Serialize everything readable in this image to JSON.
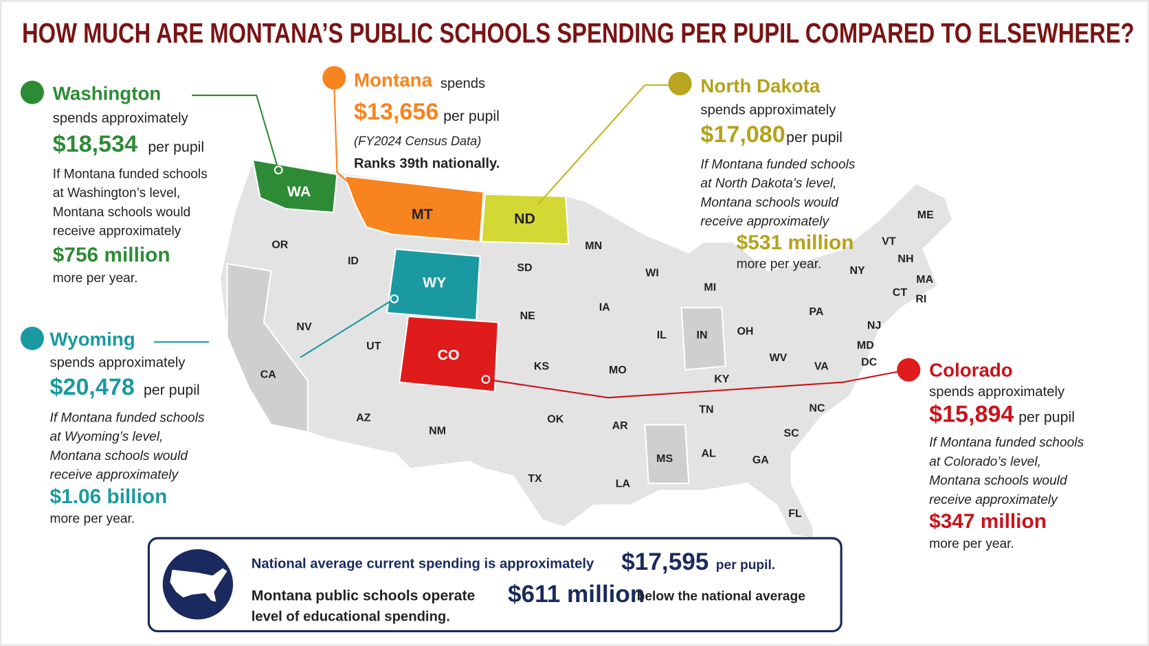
{
  "title": "HOW MUCH ARE MONTANA’S PUBLIC SCHOOLS SPENDING PER PUPIL COMPARED TO ELSEWHERE?",
  "callouts": {
    "washington": {
      "name": "Washington",
      "lead": "spends approximately",
      "amount": "$18,534",
      "unit": "per pupil",
      "note": [
        "If Montana funded schools",
        "at Washington’s level,",
        "Montana schools would",
        "receive approximately"
      ],
      "total": "$756 million",
      "tail": "more per year."
    },
    "montana": {
      "name": "Montana",
      "lead": "spends",
      "amount": "$13,656",
      "unit": "per pupil",
      "source": "(FY2024 Census Data)",
      "rank": "Ranks 39th nationally."
    },
    "north_dakota": {
      "name": "North Dakota",
      "lead": "spends approximately",
      "amount": "$17,080",
      "unit": "per pupil",
      "note": [
        "If Montana funded schools",
        "at North Dakota’s level,",
        "Montana schools would",
        "receive approximately"
      ],
      "total": "$531 million",
      "tail": "more per year."
    },
    "wyoming": {
      "name": "Wyoming",
      "lead": "spends approximately",
      "amount": "$20,478",
      "unit": "per pupil",
      "note": [
        "If Montana funded schools",
        "at Wyoming’s level,",
        "Montana schools would",
        "receive approximately"
      ],
      "total": "$1.06 billion",
      "tail": "more per year."
    },
    "colorado": {
      "name": "Colorado",
      "lead": "spends approximately",
      "amount": "$15,894",
      "unit": "per pupil",
      "note": [
        "If Montana funded schools",
        "at Colorado’s level,",
        "Montana schools would",
        "receive approximately"
      ],
      "total": "$347 million",
      "tail": "more per year."
    }
  },
  "map": {
    "states": [
      "WA",
      "OR",
      "ID",
      "MT",
      "ND",
      "SD",
      "WY",
      "NV",
      "UT",
      "CO",
      "CA",
      "AZ",
      "NM",
      "NE",
      "KS",
      "OK",
      "TX",
      "MN",
      "IA",
      "MO",
      "AR",
      "LA",
      "WI",
      "IL",
      "MI",
      "IN",
      "OH",
      "KY",
      "TN",
      "MS",
      "AL",
      "GA",
      "FL",
      "SC",
      "NC",
      "VA",
      "WV",
      "PA",
      "NY",
      "VT",
      "NH",
      "ME",
      "MA",
      "CT",
      "RI",
      "NJ",
      "MD",
      "DC"
    ]
  },
  "national": {
    "line1": "National average current spending is approximately",
    "amount1": "$17,595",
    "unit1": "per pupil.",
    "line2": "Montana public schools operate",
    "amount2": "$611 million",
    "line2b": "below the national average",
    "line3": "level of educational spending."
  }
}
